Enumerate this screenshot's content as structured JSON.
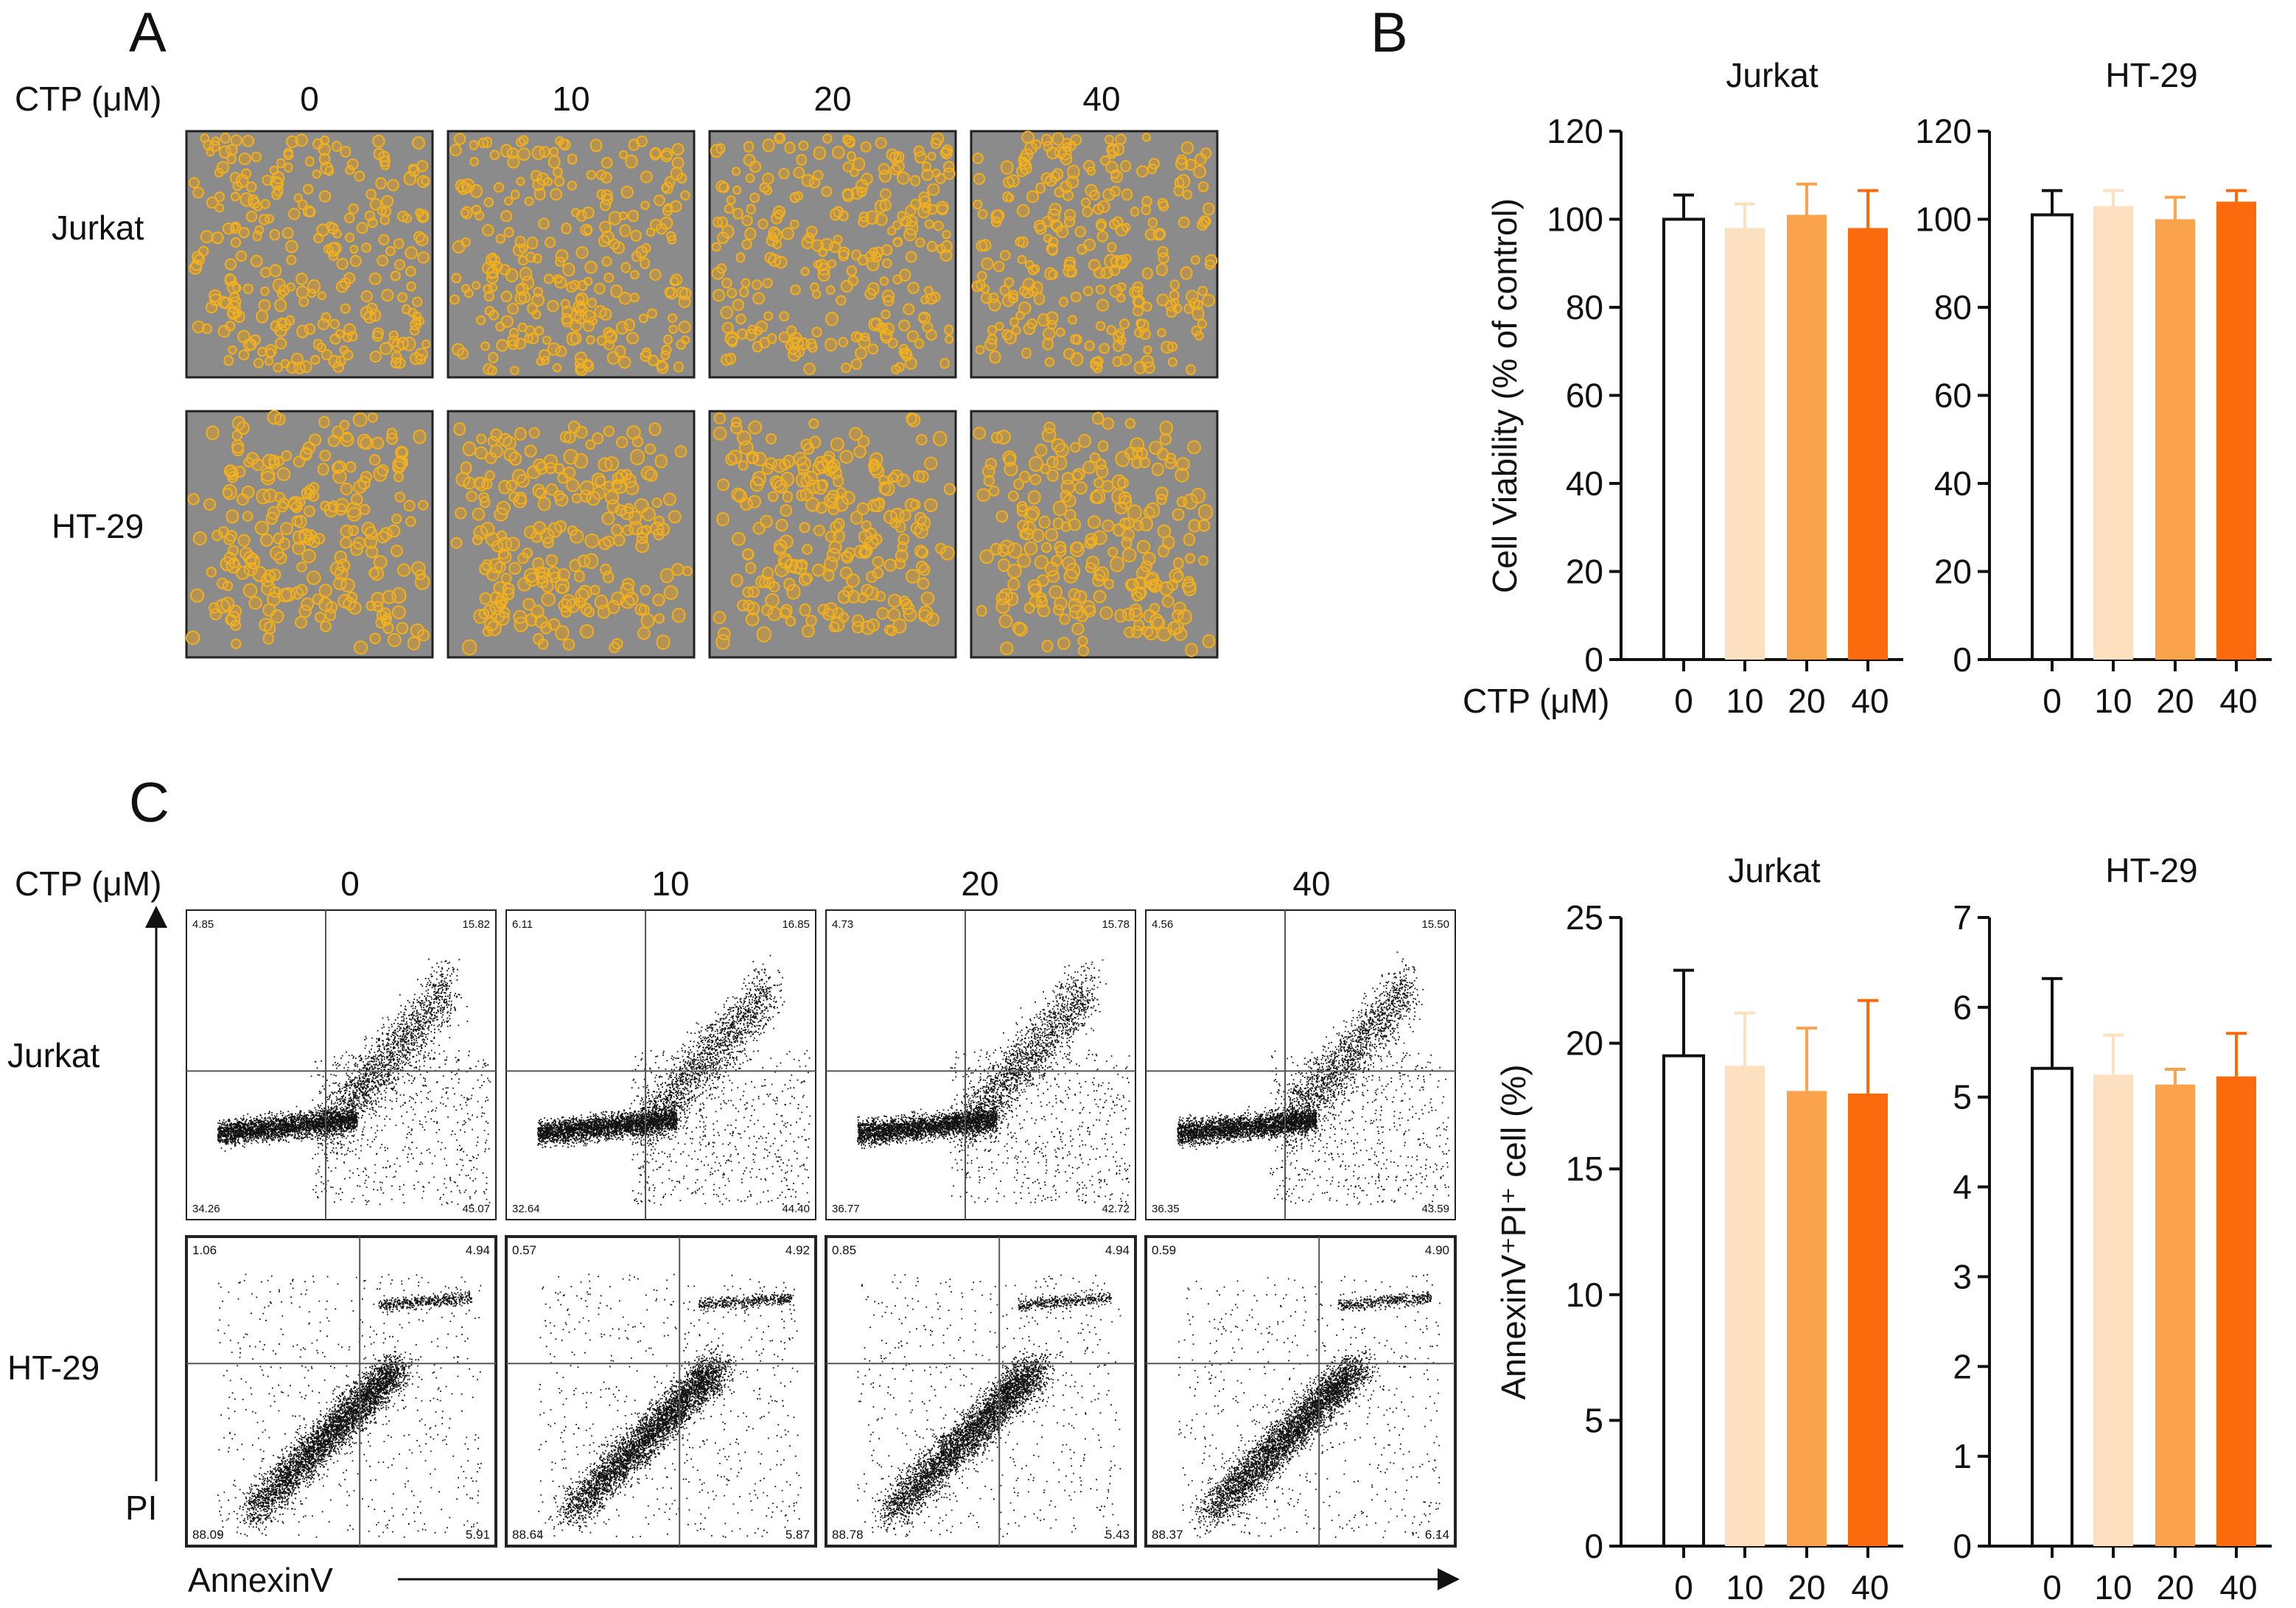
{
  "panel_letters": {
    "a": "A",
    "b": "B",
    "c": "C"
  },
  "colors": {
    "c0": "#ffffff",
    "c10": "#fde0c0",
    "c20": "#fba24c",
    "c40": "#fb6a0c",
    "cell": "#e8a020",
    "micro_bg": "#8b8b8b"
  },
  "panel_a": {
    "row_label_header": "CTP (μM)",
    "columns": [
      "0",
      "10",
      "20",
      "40"
    ],
    "rows": [
      "Jurkat",
      "HT-29"
    ]
  },
  "panel_c_flow": {
    "row_label_header": "CTP (μM)",
    "columns": [
      "0",
      "10",
      "20",
      "40"
    ],
    "rows": [
      "Jurkat",
      "HT-29"
    ],
    "y_axis_label": "PI",
    "x_axis_label": "AnnexinV",
    "quadrants": {
      "Jurkat": [
        {
          "ul": "4.85",
          "ur": "15.82",
          "ll": "34.26",
          "lr": "45.07"
        },
        {
          "ul": "6.11",
          "ur": "16.85",
          "ll": "32.64",
          "lr": "44.40"
        },
        {
          "ul": "4.73",
          "ur": "15.78",
          "ll": "36.77",
          "lr": "42.72"
        },
        {
          "ul": "4.56",
          "ur": "15.50",
          "ll": "36.35",
          "lr": "43.59"
        }
      ],
      "HT-29": [
        {
          "ul": "1.06",
          "ur": "4.94",
          "ll": "88.09",
          "lr": "5.91"
        },
        {
          "ul": "0.57",
          "ur": "4.92",
          "ll": "88.64",
          "lr": "5.87"
        },
        {
          "ul": "0.85",
          "ur": "4.94",
          "ll": "88.78",
          "lr": "5.43"
        },
        {
          "ul": "0.59",
          "ur": "4.90",
          "ll": "88.37",
          "lr": "6.14"
        }
      ]
    }
  },
  "chart_data": [
    {
      "type": "bar",
      "id": "b_jurkat",
      "title": "Jurkat",
      "categories": [
        "0",
        "10",
        "20",
        "40"
      ],
      "values": [
        100,
        98,
        101,
        98
      ],
      "errors": [
        5.5,
        5.5,
        7,
        8.5
      ],
      "ylim": [
        0,
        120
      ],
      "yticks": [
        0,
        20,
        40,
        60,
        80,
        100,
        120
      ],
      "ylabel": "Cell Viability (% of control)",
      "xlabel": "CTP (μM)"
    },
    {
      "type": "bar",
      "id": "b_ht29",
      "title": "HT-29",
      "categories": [
        "0",
        "10",
        "20",
        "40"
      ],
      "values": [
        101,
        103,
        100,
        104
      ],
      "errors": [
        5.5,
        3.5,
        5,
        2.5
      ],
      "ylim": [
        0,
        120
      ],
      "yticks": [
        0,
        20,
        40,
        60,
        80,
        100,
        120
      ],
      "ylabel": "",
      "xlabel": ""
    },
    {
      "type": "bar",
      "id": "c_jurkat",
      "title": "Jurkat",
      "categories": [
        "0",
        "10",
        "20",
        "40"
      ],
      "values": [
        19.5,
        19.1,
        18.1,
        18.0
      ],
      "errors": [
        3.4,
        2.1,
        2.5,
        3.7
      ],
      "ylim": [
        0,
        25
      ],
      "yticks": [
        0,
        5,
        10,
        15,
        20,
        25
      ],
      "ylabel": "AnnexinV⁺PI⁺ cell (%)",
      "xlabel": ""
    },
    {
      "type": "bar",
      "id": "c_ht29",
      "title": "HT-29",
      "categories": [
        "0",
        "10",
        "20",
        "40"
      ],
      "values": [
        5.32,
        5.25,
        5.14,
        5.23
      ],
      "errors": [
        1.0,
        0.44,
        0.17,
        0.48
      ],
      "ylim": [
        0,
        7
      ],
      "yticks": [
        0,
        1,
        2,
        3,
        4,
        5,
        6,
        7
      ],
      "ylabel": "",
      "xlabel": ""
    }
  ]
}
